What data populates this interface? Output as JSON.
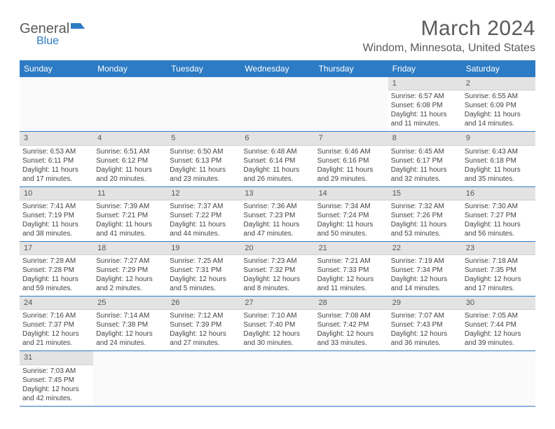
{
  "logo": {
    "main": "General",
    "sub": "Blue"
  },
  "title": "March 2024",
  "location": "Windom, Minnesota, United States",
  "colors": {
    "header_bg": "#2d7bc4",
    "header_text": "#ffffff",
    "daynum_bg": "#e3e3e3",
    "row_border": "#2d7bc4",
    "text": "#444444",
    "title_text": "#5a5a5a"
  },
  "weekdays": [
    "Sunday",
    "Monday",
    "Tuesday",
    "Wednesday",
    "Thursday",
    "Friday",
    "Saturday"
  ],
  "weeks": [
    [
      {
        "empty": true
      },
      {
        "empty": true
      },
      {
        "empty": true
      },
      {
        "empty": true
      },
      {
        "empty": true
      },
      {
        "num": "1",
        "sunrise": "Sunrise: 6:57 AM",
        "sunset": "Sunset: 6:08 PM",
        "daylight": "Daylight: 11 hours and 11 minutes."
      },
      {
        "num": "2",
        "sunrise": "Sunrise: 6:55 AM",
        "sunset": "Sunset: 6:09 PM",
        "daylight": "Daylight: 11 hours and 14 minutes."
      }
    ],
    [
      {
        "num": "3",
        "sunrise": "Sunrise: 6:53 AM",
        "sunset": "Sunset: 6:11 PM",
        "daylight": "Daylight: 11 hours and 17 minutes."
      },
      {
        "num": "4",
        "sunrise": "Sunrise: 6:51 AM",
        "sunset": "Sunset: 6:12 PM",
        "daylight": "Daylight: 11 hours and 20 minutes."
      },
      {
        "num": "5",
        "sunrise": "Sunrise: 6:50 AM",
        "sunset": "Sunset: 6:13 PM",
        "daylight": "Daylight: 11 hours and 23 minutes."
      },
      {
        "num": "6",
        "sunrise": "Sunrise: 6:48 AM",
        "sunset": "Sunset: 6:14 PM",
        "daylight": "Daylight: 11 hours and 26 minutes."
      },
      {
        "num": "7",
        "sunrise": "Sunrise: 6:46 AM",
        "sunset": "Sunset: 6:16 PM",
        "daylight": "Daylight: 11 hours and 29 minutes."
      },
      {
        "num": "8",
        "sunrise": "Sunrise: 6:45 AM",
        "sunset": "Sunset: 6:17 PM",
        "daylight": "Daylight: 11 hours and 32 minutes."
      },
      {
        "num": "9",
        "sunrise": "Sunrise: 6:43 AM",
        "sunset": "Sunset: 6:18 PM",
        "daylight": "Daylight: 11 hours and 35 minutes."
      }
    ],
    [
      {
        "num": "10",
        "sunrise": "Sunrise: 7:41 AM",
        "sunset": "Sunset: 7:19 PM",
        "daylight": "Daylight: 11 hours and 38 minutes."
      },
      {
        "num": "11",
        "sunrise": "Sunrise: 7:39 AM",
        "sunset": "Sunset: 7:21 PM",
        "daylight": "Daylight: 11 hours and 41 minutes."
      },
      {
        "num": "12",
        "sunrise": "Sunrise: 7:37 AM",
        "sunset": "Sunset: 7:22 PM",
        "daylight": "Daylight: 11 hours and 44 minutes."
      },
      {
        "num": "13",
        "sunrise": "Sunrise: 7:36 AM",
        "sunset": "Sunset: 7:23 PM",
        "daylight": "Daylight: 11 hours and 47 minutes."
      },
      {
        "num": "14",
        "sunrise": "Sunrise: 7:34 AM",
        "sunset": "Sunset: 7:24 PM",
        "daylight": "Daylight: 11 hours and 50 minutes."
      },
      {
        "num": "15",
        "sunrise": "Sunrise: 7:32 AM",
        "sunset": "Sunset: 7:26 PM",
        "daylight": "Daylight: 11 hours and 53 minutes."
      },
      {
        "num": "16",
        "sunrise": "Sunrise: 7:30 AM",
        "sunset": "Sunset: 7:27 PM",
        "daylight": "Daylight: 11 hours and 56 minutes."
      }
    ],
    [
      {
        "num": "17",
        "sunrise": "Sunrise: 7:28 AM",
        "sunset": "Sunset: 7:28 PM",
        "daylight": "Daylight: 11 hours and 59 minutes."
      },
      {
        "num": "18",
        "sunrise": "Sunrise: 7:27 AM",
        "sunset": "Sunset: 7:29 PM",
        "daylight": "Daylight: 12 hours and 2 minutes."
      },
      {
        "num": "19",
        "sunrise": "Sunrise: 7:25 AM",
        "sunset": "Sunset: 7:31 PM",
        "daylight": "Daylight: 12 hours and 5 minutes."
      },
      {
        "num": "20",
        "sunrise": "Sunrise: 7:23 AM",
        "sunset": "Sunset: 7:32 PM",
        "daylight": "Daylight: 12 hours and 8 minutes."
      },
      {
        "num": "21",
        "sunrise": "Sunrise: 7:21 AM",
        "sunset": "Sunset: 7:33 PM",
        "daylight": "Daylight: 12 hours and 11 minutes."
      },
      {
        "num": "22",
        "sunrise": "Sunrise: 7:19 AM",
        "sunset": "Sunset: 7:34 PM",
        "daylight": "Daylight: 12 hours and 14 minutes."
      },
      {
        "num": "23",
        "sunrise": "Sunrise: 7:18 AM",
        "sunset": "Sunset: 7:35 PM",
        "daylight": "Daylight: 12 hours and 17 minutes."
      }
    ],
    [
      {
        "num": "24",
        "sunrise": "Sunrise: 7:16 AM",
        "sunset": "Sunset: 7:37 PM",
        "daylight": "Daylight: 12 hours and 21 minutes."
      },
      {
        "num": "25",
        "sunrise": "Sunrise: 7:14 AM",
        "sunset": "Sunset: 7:38 PM",
        "daylight": "Daylight: 12 hours and 24 minutes."
      },
      {
        "num": "26",
        "sunrise": "Sunrise: 7:12 AM",
        "sunset": "Sunset: 7:39 PM",
        "daylight": "Daylight: 12 hours and 27 minutes."
      },
      {
        "num": "27",
        "sunrise": "Sunrise: 7:10 AM",
        "sunset": "Sunset: 7:40 PM",
        "daylight": "Daylight: 12 hours and 30 minutes."
      },
      {
        "num": "28",
        "sunrise": "Sunrise: 7:08 AM",
        "sunset": "Sunset: 7:42 PM",
        "daylight": "Daylight: 12 hours and 33 minutes."
      },
      {
        "num": "29",
        "sunrise": "Sunrise: 7:07 AM",
        "sunset": "Sunset: 7:43 PM",
        "daylight": "Daylight: 12 hours and 36 minutes."
      },
      {
        "num": "30",
        "sunrise": "Sunrise: 7:05 AM",
        "sunset": "Sunset: 7:44 PM",
        "daylight": "Daylight: 12 hours and 39 minutes."
      }
    ],
    [
      {
        "num": "31",
        "sunrise": "Sunrise: 7:03 AM",
        "sunset": "Sunset: 7:45 PM",
        "daylight": "Daylight: 12 hours and 42 minutes."
      },
      {
        "empty": true
      },
      {
        "empty": true
      },
      {
        "empty": true
      },
      {
        "empty": true
      },
      {
        "empty": true
      },
      {
        "empty": true
      }
    ]
  ]
}
